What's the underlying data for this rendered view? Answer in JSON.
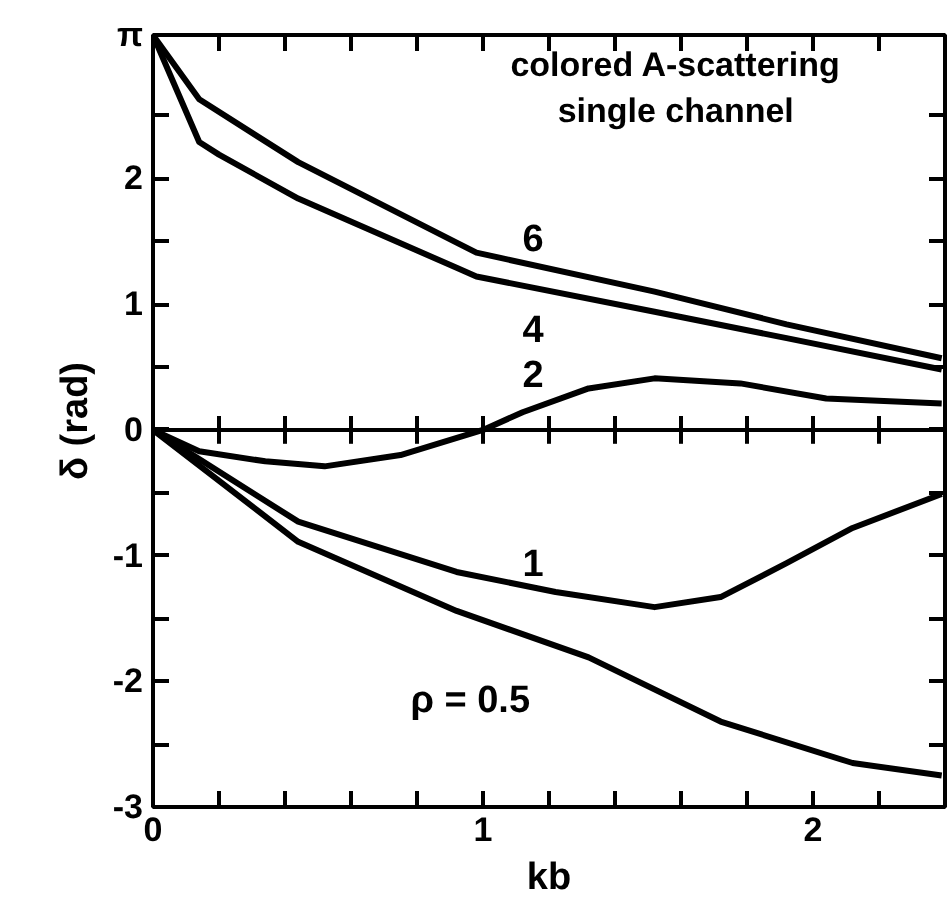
{
  "chart_data": {
    "type": "line",
    "xlabel": "kb",
    "ylabel": "δ (rad)",
    "annotations": [
      "colored A-scattering\nsingle channel"
    ],
    "xlim": [
      0,
      2.4
    ],
    "ylim": [
      -3,
      3.14159
    ],
    "xticks": [
      0,
      {
        "value": 0.2,
        "label": null
      },
      {
        "value": 0.4,
        "label": null
      },
      {
        "value": 0.6,
        "label": null
      },
      {
        "value": 0.8,
        "label": null
      },
      1,
      {
        "value": 1.2,
        "label": null
      },
      {
        "value": 1.4,
        "label": null
      },
      {
        "value": 1.6,
        "label": null
      },
      {
        "value": 1.8,
        "label": null
      },
      2,
      {
        "value": 2.2,
        "label": null
      }
    ],
    "yticks": [
      -3,
      {
        "value": -2.5,
        "label": null
      },
      -2,
      {
        "value": -1.5,
        "label": null
      },
      -1,
      {
        "value": -0.5,
        "label": null
      },
      0,
      {
        "value": 0.5,
        "label": null
      },
      1,
      {
        "value": 1.5,
        "label": null
      },
      2,
      {
        "value": 2.5,
        "label": null
      },
      {
        "value": 3.14159,
        "label": "π"
      }
    ],
    "ref_lines": [
      {
        "axis": "y",
        "value": 0,
        "label": null,
        "color": "#000000"
      }
    ],
    "grid": false,
    "marker": "none",
    "line_style": "solid",
    "series": [
      {
        "name": "6",
        "color": "#000000",
        "x": [
          0,
          0.14,
          0.44,
          0.92,
          0.98,
          1.52,
          1.92,
          2.39
        ],
        "values": [
          3.14,
          2.63,
          2.13,
          1.49,
          1.41,
          1.1,
          0.84,
          0.57
        ]
      },
      {
        "name": "4",
        "color": "#000000",
        "x": [
          0,
          0.14,
          0.2,
          0.44,
          0.92,
          0.98,
          1.52,
          1.92,
          2.39
        ],
        "values": [
          3.14,
          2.29,
          2.19,
          1.84,
          1.29,
          1.22,
          0.94,
          0.73,
          0.48
        ]
      },
      {
        "name": "2",
        "color": "#000000",
        "x": [
          0,
          0.14,
          0.34,
          0.52,
          0.75,
          1.0,
          1.12,
          1.32,
          1.52,
          1.78,
          2.04,
          2.39
        ],
        "values": [
          0,
          -0.17,
          -0.25,
          -0.29,
          -0.2,
          0,
          0.14,
          0.33,
          0.41,
          0.37,
          0.25,
          0.21
        ]
      },
      {
        "name": "1",
        "color": "#000000",
        "x": [
          0,
          0.44,
          0.92,
          1.22,
          1.52,
          1.72,
          1.92,
          2.12,
          2.39
        ],
        "values": [
          0,
          -0.73,
          -1.13,
          -1.29,
          -1.41,
          -1.33,
          -1.06,
          -0.78,
          -0.51
        ]
      },
      {
        "name": "ρ = 0.5",
        "color": "#000000",
        "x": [
          0,
          0.44,
          0.92,
          1.32,
          1.72,
          2.12,
          2.39
        ],
        "values": [
          0,
          -0.89,
          -1.44,
          -1.81,
          -2.32,
          -2.65,
          -2.75
        ]
      }
    ]
  }
}
